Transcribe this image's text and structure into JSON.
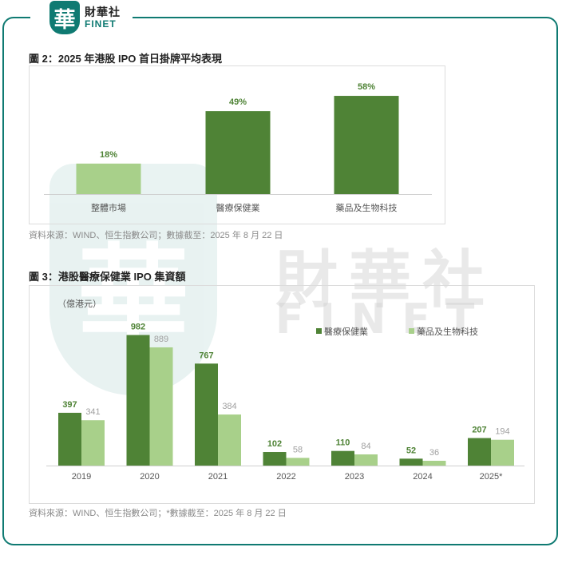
{
  "brand": {
    "logo_glyph": "華",
    "name_cn": "財華社",
    "name_en": "FINET",
    "color": "#0f7a72"
  },
  "watermark": {
    "cn": "財華社",
    "en": "FINET"
  },
  "colors": {
    "dark_green": "#4f8336",
    "light_green": "#a8d08a",
    "label_green": "#4f8336",
    "label_gray": "#a0a0a0"
  },
  "figures": [
    {
      "title": "圖 2：2025 年港股 IPO 首日掛牌平均表現",
      "source": "資料來源：WIND、恒生指數公司；數據截至：2025 年 8 月 22 日"
    },
    {
      "title": "圖 3：港股醫療保健業 IPO 集資額",
      "source": "資料來源：WIND、恒生指數公司；*數據截至：2025 年 8 月 22 日"
    }
  ],
  "chart_data": [
    {
      "type": "bar",
      "title": "圖 2：2025 年港股 IPO 首日掛牌平均表現",
      "categories": [
        "整體市場",
        "醫療保健業",
        "藥品及生物科技"
      ],
      "values": [
        18,
        49,
        58
      ],
      "data_labels": [
        "18%",
        "49%",
        "58%"
      ],
      "bar_colors": [
        "#a8d08a",
        "#4f8336",
        "#4f8336"
      ],
      "ylim": [
        0,
        60
      ],
      "grid": false
    },
    {
      "type": "bar",
      "title": "圖 3：港股醫療保健業 IPO 集資額",
      "unit_label": "（億港元）",
      "categories": [
        "2019",
        "2020",
        "2021",
        "2022",
        "2023",
        "2024",
        "2025*"
      ],
      "series": [
        {
          "name": "醫療保健業",
          "values": [
            397,
            982,
            767,
            102,
            110,
            52,
            207
          ],
          "color": "#4f8336"
        },
        {
          "name": "藥品及生物科技",
          "values": [
            341,
            889,
            384,
            58,
            84,
            36,
            194
          ],
          "color": "#a8d08a"
        }
      ],
      "ylim": [
        0,
        1000
      ],
      "legend": "top-right",
      "grid": false
    }
  ]
}
